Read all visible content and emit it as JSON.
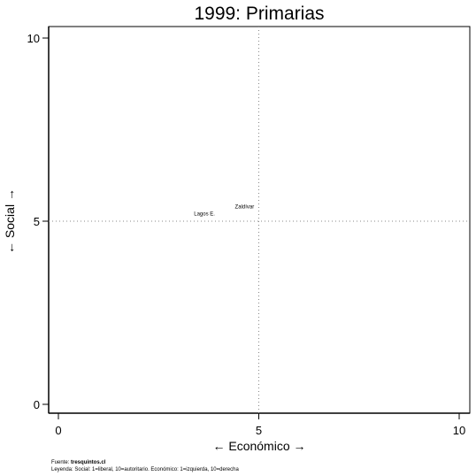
{
  "chart_data": {
    "type": "scatter",
    "title": "1999: Primarias",
    "xlabel": "←  Económico  →",
    "ylabel": "←  Social  →",
    "xlim": [
      0,
      10
    ],
    "ylim": [
      0,
      10
    ],
    "xticks": [
      0,
      5,
      10
    ],
    "yticks": [
      0,
      5,
      10
    ],
    "reference_lines": {
      "x": 5,
      "y": 5,
      "style": "dotted"
    },
    "points": [
      {
        "label": "Zaldívar",
        "x": 4.6,
        "y": 5.4
      },
      {
        "label": "Lagos E.",
        "x": 3.6,
        "y": 5.2
      }
    ]
  },
  "footer": {
    "source_prefix": "Fuente: ",
    "source_name": "tresquintos.cl",
    "legend": "Leyenda: Social: 1=liberal, 10=autoritario. Económico: 1=izquierda, 10=derecha"
  }
}
